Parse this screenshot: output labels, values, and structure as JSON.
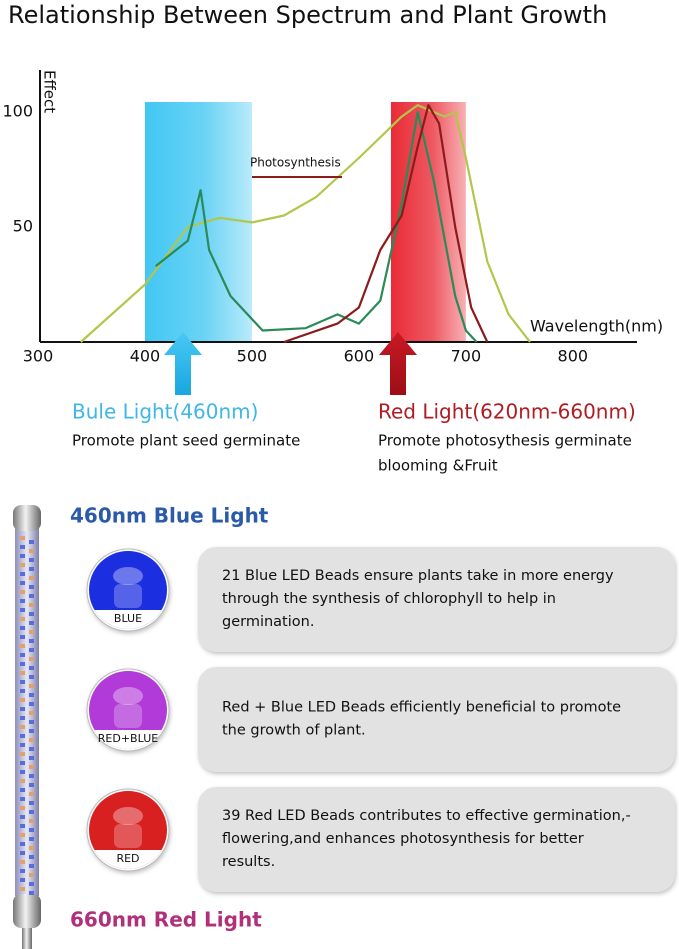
{
  "title": "Relationship Between Spectrum and Plant Growth",
  "chart_data": {
    "type": "line",
    "ylabel": "Effect",
    "xlabel": "Wavelength(nm)",
    "xlim": [
      300,
      860
    ],
    "ylim": [
      0,
      120
    ],
    "xticks": [
      300,
      400,
      500,
      600,
      700,
      800
    ],
    "yticks": [
      50,
      100
    ],
    "bands": [
      {
        "range": [
          400,
          500
        ],
        "color": "#38c4f2"
      },
      {
        "range": [
          630,
          700
        ],
        "color": "#e8202c"
      }
    ],
    "series": [
      {
        "color": "#b3c64a",
        "x": [
          340,
          400,
          440,
          470,
          500,
          530,
          560,
          600,
          640,
          655,
          680,
          690,
          700,
          720,
          740,
          760
        ],
        "values": [
          0,
          25,
          50,
          54,
          52,
          55,
          63,
          80,
          98,
          103,
          98,
          100,
          80,
          35,
          12,
          0
        ]
      },
      {
        "color": "#2a8a58",
        "x": [
          410,
          440,
          452,
          460,
          480,
          510,
          550,
          580,
          600,
          620,
          640,
          655,
          670,
          690,
          700,
          710
        ],
        "values": [
          33,
          44,
          66,
          40,
          20,
          5,
          6,
          12,
          8,
          18,
          60,
          100,
          70,
          20,
          5,
          0
        ]
      },
      {
        "name": "Photosynthesis",
        "color": "#8c1c1c",
        "x": [
          530,
          580,
          600,
          620,
          640,
          655,
          665,
          675,
          690,
          705,
          720
        ],
        "values": [
          0,
          8,
          15,
          40,
          55,
          85,
          103,
          95,
          50,
          15,
          0
        ]
      }
    ]
  },
  "callouts": [
    {
      "title": "Bule Light(460nm)",
      "lines": [
        "Promote plant seed germinate"
      ],
      "color": "#3fb6e8"
    },
    {
      "title": "Red Light(620nm-660nm)",
      "lines": [
        "Promote photosythesis germinate",
        "blooming &Fruit"
      ],
      "color": "#b01c22"
    }
  ],
  "top_label": "460nm Blue Light",
  "bottom_label": "660nm Red Light",
  "modes": [
    {
      "label": "BLUE",
      "color": "#1c2fe0",
      "lines": [
        "21 Blue LED Beads ensure plants take in more energy",
        "through the synthesis of chlorophyll to help in",
        "germination."
      ]
    },
    {
      "label": "RED+BLUE",
      "color": "#b23ad8",
      "lines": [
        "Red + Blue LED Beads efficiently beneficial to promote",
        "the growth of plant."
      ]
    },
    {
      "label": "RED",
      "color": "#d82020",
      "lines": [
        "39 Red LED Beads contributes to effective germination,-",
        "flowering,and enhances photosynthesis for better",
        "results."
      ]
    }
  ]
}
